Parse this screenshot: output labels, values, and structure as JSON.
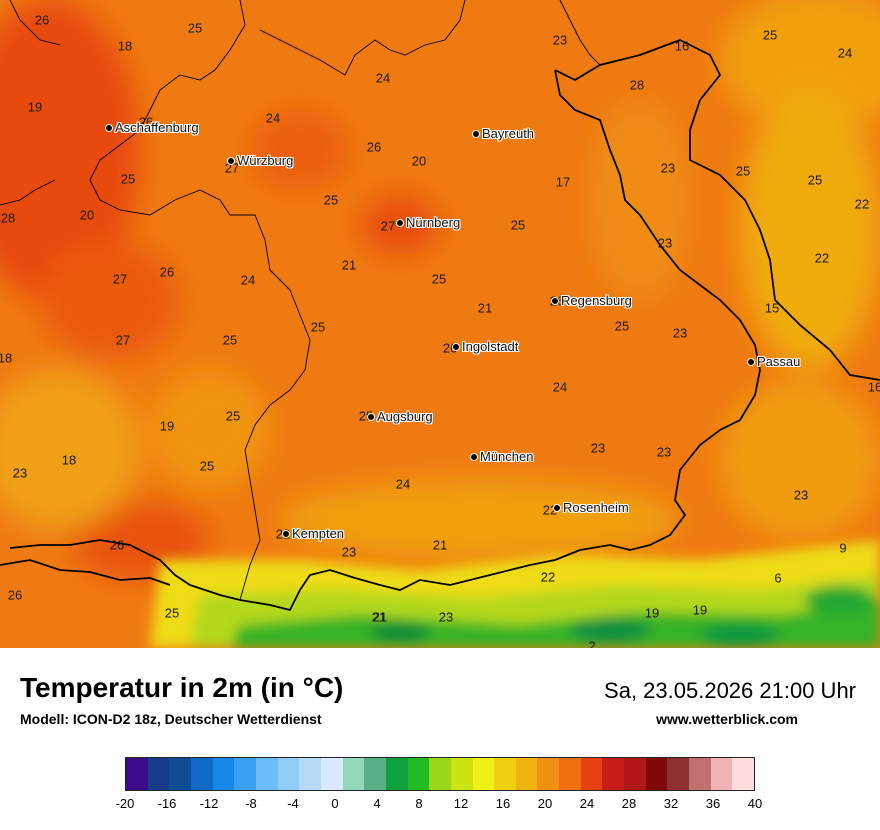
{
  "map": {
    "values": [
      {
        "v": "26"
      },
      {
        "v": "25"
      },
      {
        "v": "18"
      },
      {
        "v": "23"
      },
      {
        "v": "16"
      },
      {
        "v": "25"
      },
      {
        "v": "24"
      },
      {
        "v": "24"
      },
      {
        "v": "28"
      },
      {
        "v": "19"
      },
      {
        "v": "26"
      },
      {
        "v": "24"
      },
      {
        "v": "26"
      },
      {
        "v": "20"
      },
      {
        "v": "27"
      },
      {
        "v": "25"
      },
      {
        "v": "23"
      },
      {
        "v": "25"
      },
      {
        "v": "17"
      },
      {
        "v": "25"
      },
      {
        "v": "25"
      },
      {
        "v": "28"
      },
      {
        "v": "20"
      },
      {
        "v": "27"
      },
      {
        "v": "25"
      },
      {
        "v": "22"
      },
      {
        "v": "27"
      },
      {
        "v": "26"
      },
      {
        "v": "24"
      },
      {
        "v": "21"
      },
      {
        "v": "25"
      },
      {
        "v": "23"
      },
      {
        "v": "22"
      },
      {
        "v": "21"
      },
      {
        "v": "26"
      },
      {
        "v": "25"
      },
      {
        "v": "15"
      },
      {
        "v": "27"
      },
      {
        "v": "25"
      },
      {
        "v": "25"
      },
      {
        "v": "23"
      },
      {
        "v": "18"
      },
      {
        "v": "26"
      },
      {
        "v": "24"
      },
      {
        "v": "16"
      },
      {
        "v": "25"
      },
      {
        "v": "25"
      },
      {
        "v": "19"
      },
      {
        "v": "23"
      },
      {
        "v": "18"
      },
      {
        "v": "23"
      },
      {
        "v": "25"
      },
      {
        "v": "23"
      },
      {
        "v": "24"
      },
      {
        "v": "23"
      },
      {
        "v": "22"
      },
      {
        "v": "22"
      },
      {
        "v": "23"
      },
      {
        "v": "26"
      },
      {
        "v": "21"
      },
      {
        "v": "22"
      },
      {
        "v": "9"
      },
      {
        "v": "21"
      },
      {
        "v": "6"
      },
      {
        "v": "26"
      },
      {
        "v": "25"
      },
      {
        "v": "21"
      },
      {
        "v": "23"
      },
      {
        "v": "19"
      },
      {
        "v": "19"
      },
      {
        "v": "2"
      }
    ],
    "cities": [
      {
        "name": "Aschaffenburg"
      },
      {
        "name": "Würzburg"
      },
      {
        "name": "Bayreuth"
      },
      {
        "name": "Nürnberg"
      },
      {
        "name": "Regensburg"
      },
      {
        "name": "Ingolstadt"
      },
      {
        "name": "Passau"
      },
      {
        "name": "Augsburg"
      },
      {
        "name": "München"
      },
      {
        "name": "Rosenheim"
      },
      {
        "name": "Kempten"
      }
    ]
  },
  "footer": {
    "title": "Temperatur in 2m (in °C)",
    "subtitle": "Modell: ICON-D2 18z, Deutscher Wetterdienst",
    "datetime": "Sa, 23.05.2026 21:00 Uhr",
    "site": "www.wetterblick.com"
  },
  "legend": {
    "colors": [
      "#3b0d8c",
      "#173c8c",
      "#0f4c96",
      "#1068c8",
      "#1688e8",
      "#3aa0f4",
      "#6cbcf8",
      "#90ccfa",
      "#b4daf8",
      "#d8eafc",
      "#90d8b8",
      "#58b088",
      "#10a040",
      "#22bc22",
      "#98d818",
      "#cce414",
      "#eef018",
      "#f0d010",
      "#f0b410",
      "#f09010",
      "#f07010",
      "#e84010",
      "#c81c18",
      "#b01818",
      "#800808",
      "#903030",
      "#c07070",
      "#f0b4b4",
      "#fcdcdc"
    ],
    "ticks": [
      "-20",
      "-16",
      "-12",
      "-8",
      "-4",
      "0",
      "4",
      "8",
      "12",
      "16",
      "20",
      "24",
      "28",
      "32",
      "36",
      "40"
    ]
  }
}
